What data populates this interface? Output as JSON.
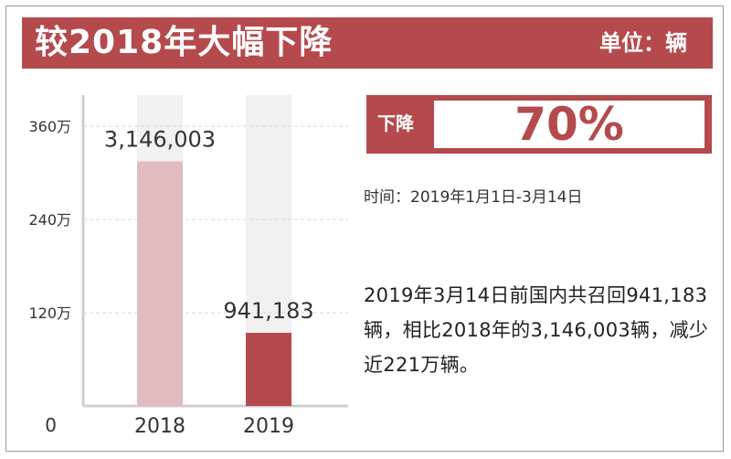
{
  "header": {
    "title": "较2018年大幅下降",
    "unit": "单位：辆",
    "background_color": "#b54a4d"
  },
  "decline": {
    "label": "下降",
    "value": "70%"
  },
  "time_range": "时间：2019年1月1日-3月14日",
  "summary": "2019年3月14日前国内共召回941,183辆，相比2018年的3,146,003辆，减少近221万辆。",
  "chart_data": {
    "type": "bar",
    "categories": [
      "2018",
      "2019"
    ],
    "values": [
      3146003,
      941183
    ],
    "value_labels": [
      "3,146,003",
      "941,183"
    ],
    "ylim": [
      0,
      3600000
    ],
    "yticks": [
      {
        "value": 0,
        "label": "0"
      },
      {
        "value": 1200000,
        "label": "120万"
      },
      {
        "value": 2400000,
        "label": "240万"
      },
      {
        "value": 3600000,
        "label": "360万"
      }
    ],
    "bar_colors": [
      "#e0bcbf",
      "#b54a4d"
    ],
    "track_color": "#f1f1f1",
    "grid": true,
    "legend": "none",
    "title": "",
    "xlabel": "",
    "ylabel": ""
  }
}
